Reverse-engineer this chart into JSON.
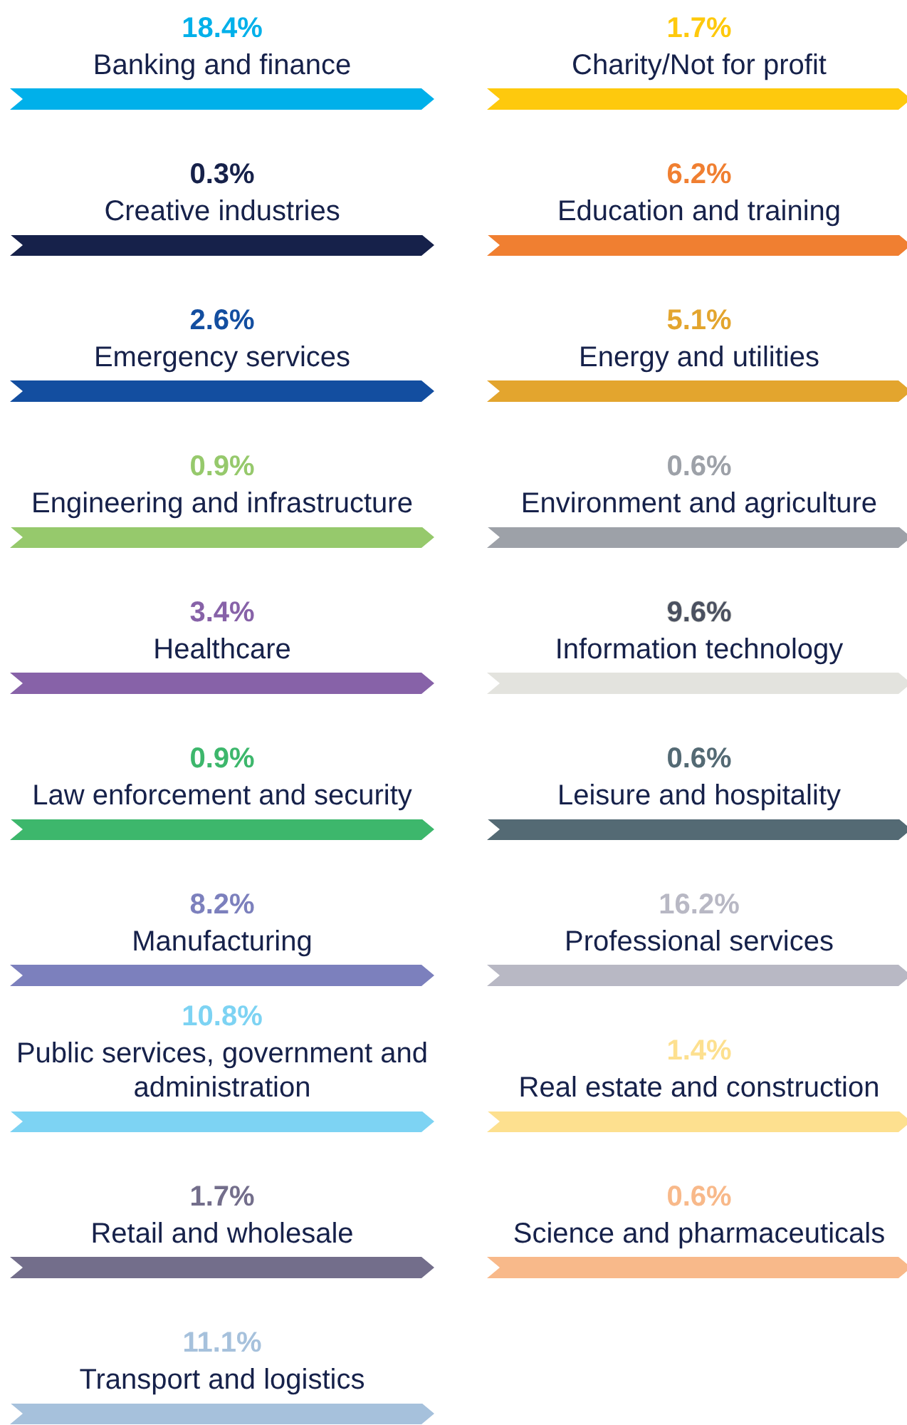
{
  "chart_data": {
    "type": "other",
    "categories": [
      "Banking and finance",
      "Charity/Not for profit",
      "Creative industries",
      "Education and training",
      "Emergency services",
      "Energy and utilities",
      "Engineering and infrastructure",
      "Environment and agriculture",
      "Healthcare",
      "Information technology",
      "Law enforcement and security",
      "Leisure and hospitality",
      "Manufacturing",
      "Professional services",
      "Public services, government and administration",
      "Real estate and construction",
      "Retail and wholesale",
      "Science and pharmaceuticals",
      "Transport and logistics"
    ],
    "values": [
      18.4,
      1.7,
      0.3,
      6.2,
      2.6,
      5.1,
      0.9,
      0.6,
      3.4,
      9.6,
      0.9,
      0.6,
      8.2,
      16.2,
      10.8,
      1.4,
      1.7,
      0.6,
      11.1
    ],
    "value_labels": [
      "18.4%",
      "1.7%",
      "0.3%",
      "6.2%",
      "2.6%",
      "5.1%",
      "0.9%",
      "0.6%",
      "3.4%",
      "9.6%",
      "0.9%",
      "0.6%",
      "8.2%",
      "16.2%",
      "10.8%",
      "1.4%",
      "1.7%",
      "0.6%",
      "11.1%"
    ],
    "colors": [
      "#00b0ea",
      "#fec90d",
      "#16214a",
      "#f07f31",
      "#134ea0",
      "#e3a52e",
      "#96c96c",
      "#9da1a8",
      "#8762a8",
      "#e3e3de",
      "#3db76c",
      "#546a74",
      "#7c80bd",
      "#b8b8c4",
      "#7dd3f3",
      "#fde08f",
      "#736e8b",
      "#f8b98a",
      "#a6c1dc"
    ]
  }
}
